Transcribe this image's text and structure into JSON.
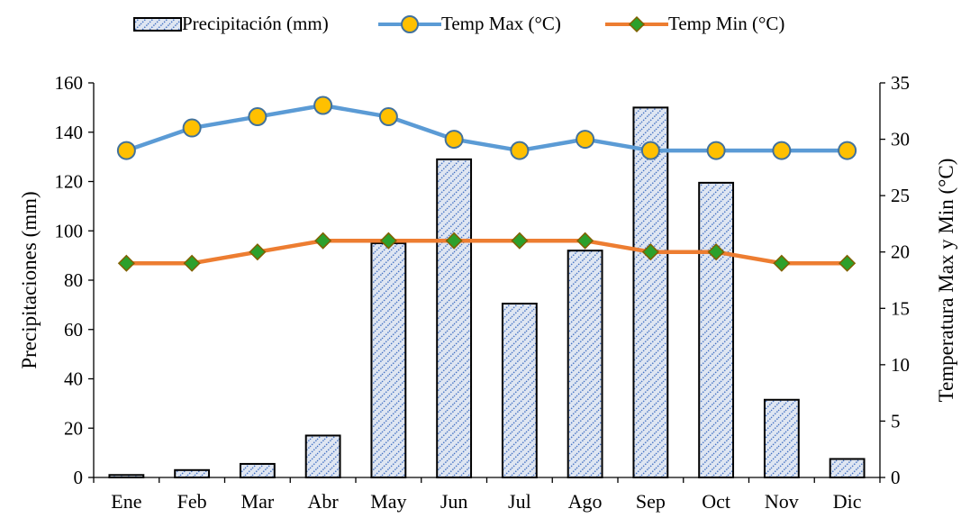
{
  "chart_data": {
    "type": "bar",
    "categories": [
      "Ene",
      "Feb",
      "Mar",
      "Abr",
      "May",
      "Jun",
      "Jul",
      "Ago",
      "Sep",
      "Oct",
      "Nov",
      "Dic"
    ],
    "series": [
      {
        "name": "Precipitación (mm)",
        "kind": "bar",
        "axis": "left",
        "values": [
          1,
          3,
          5.5,
          17,
          95,
          129,
          70.5,
          92,
          150,
          119.5,
          31.5,
          7.5
        ]
      },
      {
        "name": "Temp Max (°C)",
        "kind": "line",
        "axis": "right",
        "values": [
          29,
          31,
          32,
          33,
          32,
          30,
          29,
          30,
          29,
          29,
          29,
          29
        ]
      },
      {
        "name": "Temp Min (°C)",
        "kind": "line",
        "axis": "right",
        "values": [
          19,
          19,
          20,
          21,
          21,
          21,
          21,
          21,
          20,
          20,
          19,
          19
        ]
      }
    ],
    "ylabel": "Precipitaciones (mm)",
    "y2label": "Temperatura Max y Min (°C)",
    "ylim": [
      0,
      160
    ],
    "y2lim": [
      0,
      35
    ],
    "yticks": [
      0,
      20,
      40,
      60,
      80,
      100,
      120,
      140,
      160
    ],
    "y2ticks": [
      0,
      5,
      10,
      15,
      20,
      25,
      30,
      35
    ],
    "grid": false,
    "legend": "top-center",
    "colors": {
      "bar_fill": "#dfe6f2",
      "bar_hatch": "#4472c4",
      "bar_edge": "#000000",
      "temp_max_line": "#5b9bd5",
      "temp_max_marker": "#ffc000",
      "temp_max_marker_edge": "#41719c",
      "temp_min_line": "#ed7d31",
      "temp_min_marker": "#2ca02c",
      "temp_min_marker_edge": "#806000"
    }
  }
}
